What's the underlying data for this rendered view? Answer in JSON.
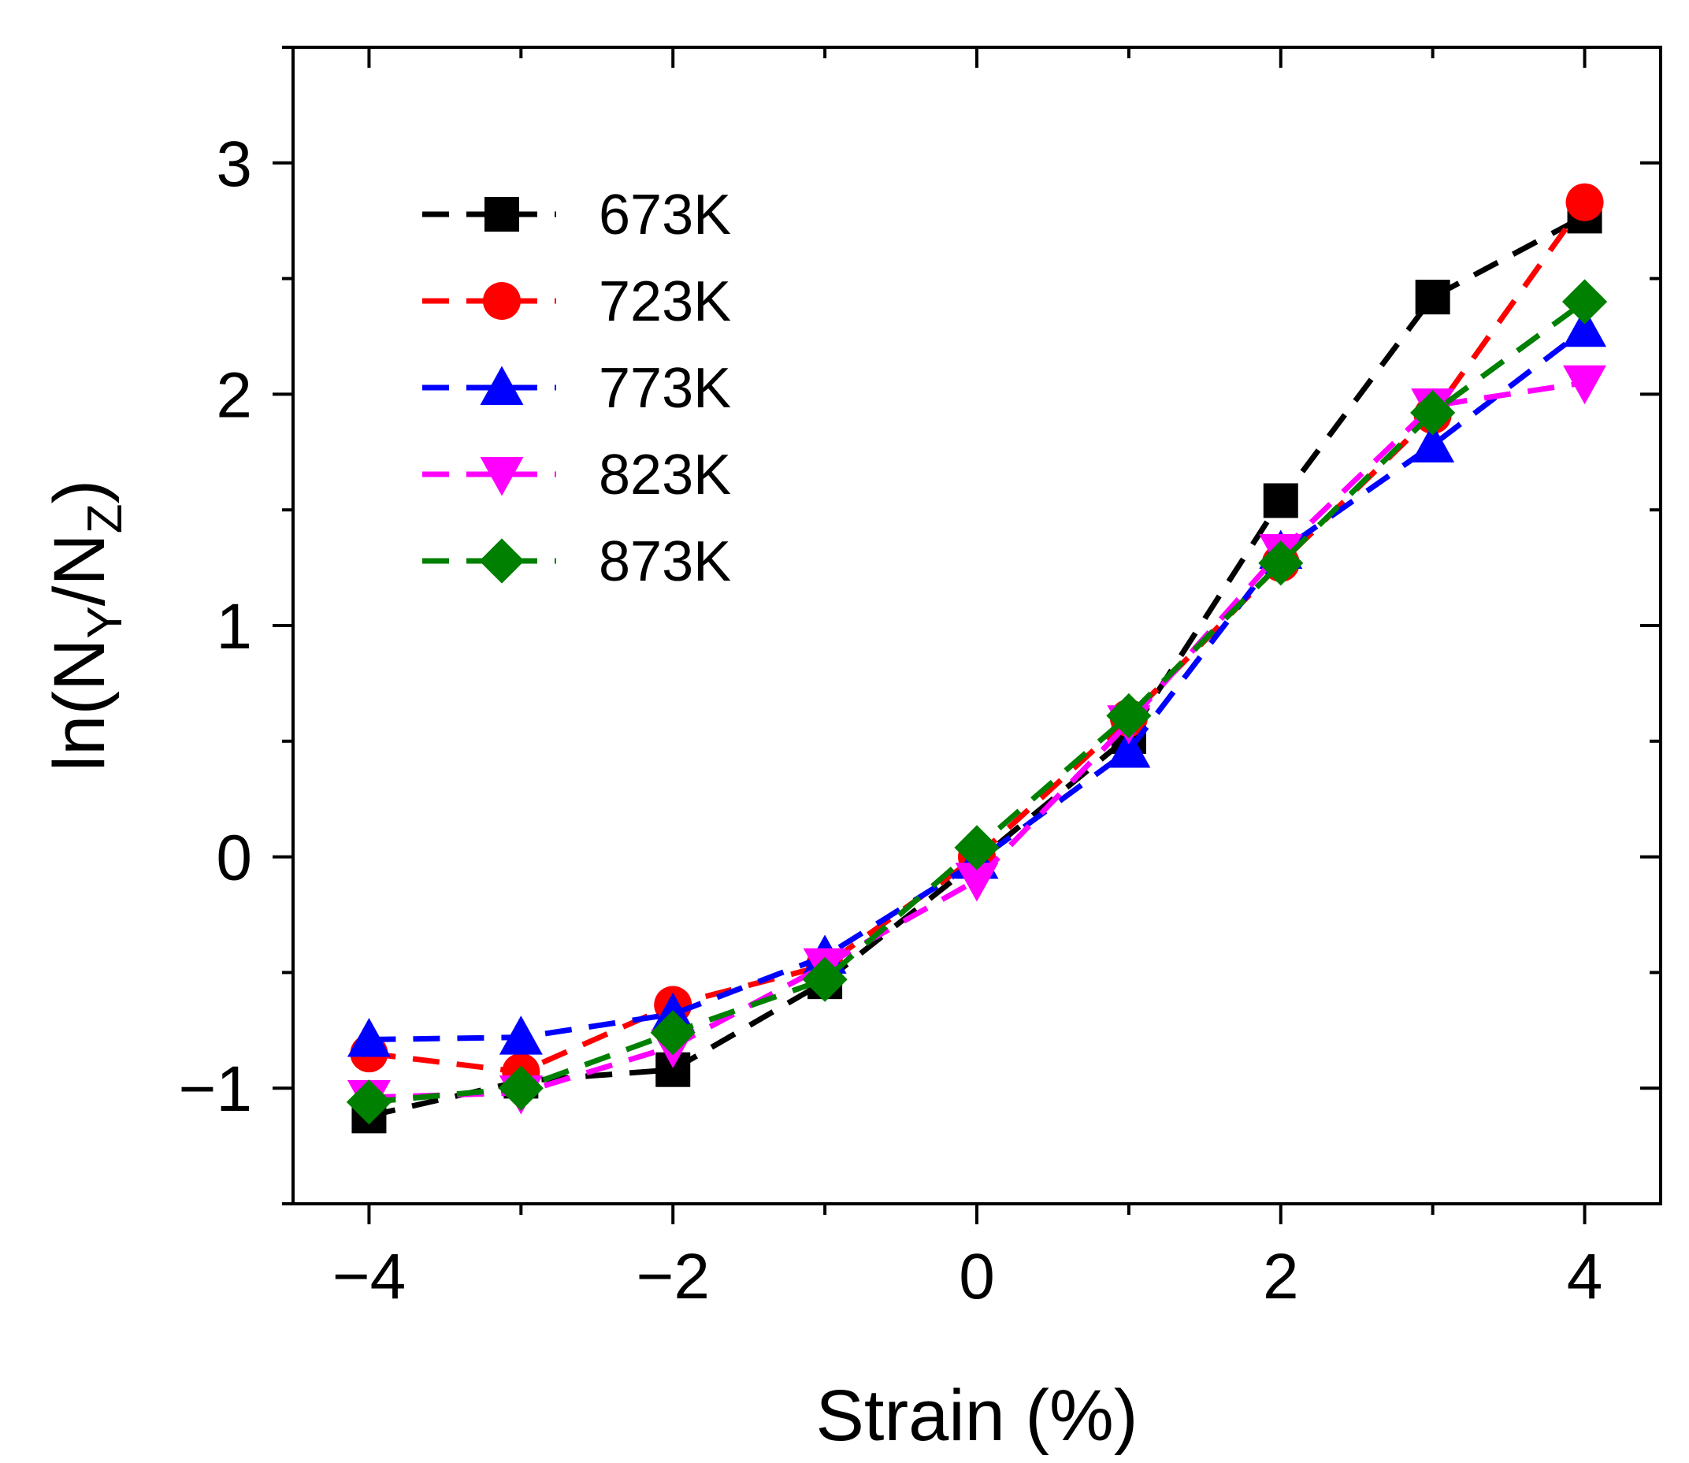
{
  "chart_data": {
    "type": "line",
    "title": "",
    "xlabel": "Strain (%)",
    "ylabel": {
      "prefix": "ln(N",
      "sub1": "Y",
      "middle": "/N",
      "sub2": "Z",
      "suffix": ")"
    },
    "xlim": [
      -4.5,
      4.5
    ],
    "ylim": [
      -1.5,
      3.5
    ],
    "xticks": [
      -4,
      -2,
      0,
      2,
      4
    ],
    "xtick_labels": [
      "−4",
      "−2",
      "0",
      "2",
      "4"
    ],
    "yticks": [
      -1,
      0,
      1,
      2,
      3
    ],
    "ytick_labels": [
      "−1",
      "0",
      "1",
      "2",
      "3"
    ],
    "legend_position": "top-left",
    "x": [
      -4,
      -3,
      -2,
      -1,
      0,
      1,
      2,
      3,
      4
    ],
    "series": [
      {
        "name": "673K",
        "color": "#000000",
        "marker": "square",
        "values": [
          -1.12,
          -0.97,
          -0.92,
          -0.54,
          -0.02,
          0.52,
          1.54,
          2.42,
          2.77
        ]
      },
      {
        "name": "723K",
        "color": "#ff0000",
        "marker": "circle",
        "values": [
          -0.85,
          -0.93,
          -0.64,
          -0.47,
          0.0,
          0.6,
          1.27,
          1.91,
          2.83
        ]
      },
      {
        "name": "773K",
        "color": "#0000ff",
        "marker": "triangle-up",
        "values": [
          -0.79,
          -0.78,
          -0.68,
          -0.43,
          -0.02,
          0.46,
          1.32,
          1.78,
          2.28
        ]
      },
      {
        "name": "823K",
        "color": "#ff00ff",
        "marker": "triangle-down",
        "values": [
          -1.04,
          -1.02,
          -0.82,
          -0.47,
          -0.1,
          0.58,
          1.32,
          1.95,
          2.05
        ]
      },
      {
        "name": "873K",
        "color": "#008000",
        "marker": "diamond",
        "values": [
          -1.06,
          -1.0,
          -0.76,
          -0.53,
          0.04,
          0.61,
          1.27,
          1.92,
          2.4
        ]
      }
    ]
  }
}
